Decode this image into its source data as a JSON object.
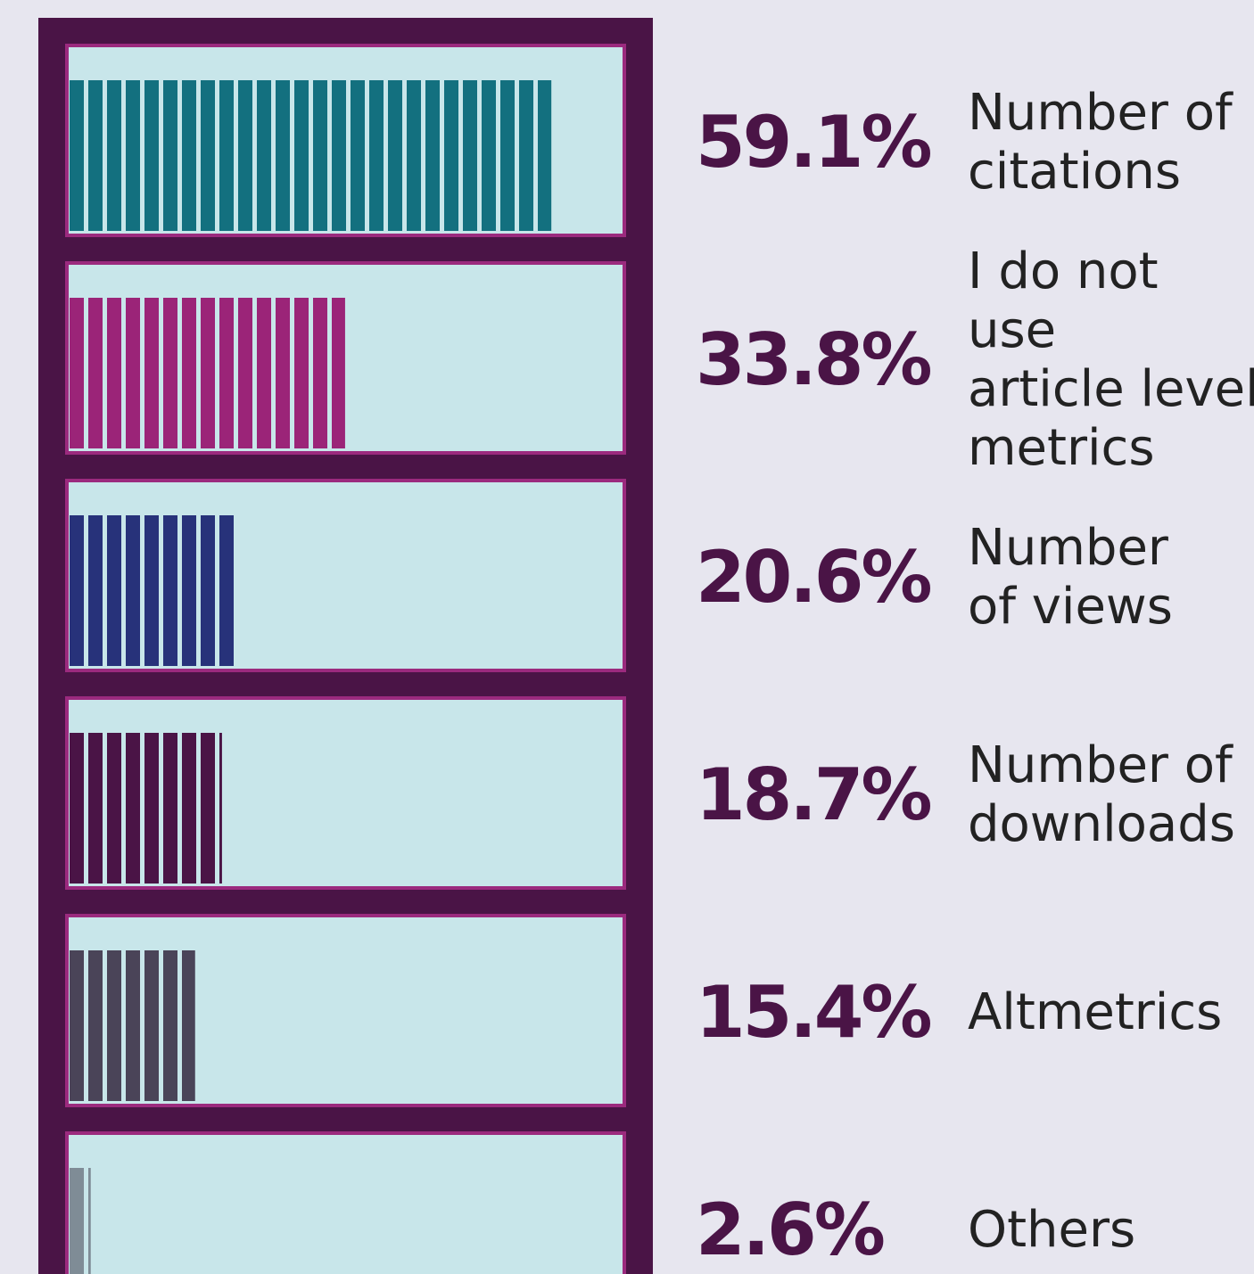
{
  "chart_data": {
    "type": "bar",
    "categories": [
      "Number of\ncitations",
      "I do not use\narticle level\nmetrics",
      "Number\nof views",
      "Number of\ndownloads",
      "Altmetrics",
      "Others"
    ],
    "values": [
      59.1,
      33.8,
      20.6,
      18.7,
      15.4,
      2.6
    ],
    "value_labels": [
      "59.1%",
      "33.8%",
      "20.6%",
      "18.7%",
      "15.4%",
      "2.6%"
    ],
    "colors": [
      "#13707f",
      "#9b2478",
      "#27327a",
      "#4a1446",
      "#4a4458",
      "#7f8c96"
    ]
  }
}
